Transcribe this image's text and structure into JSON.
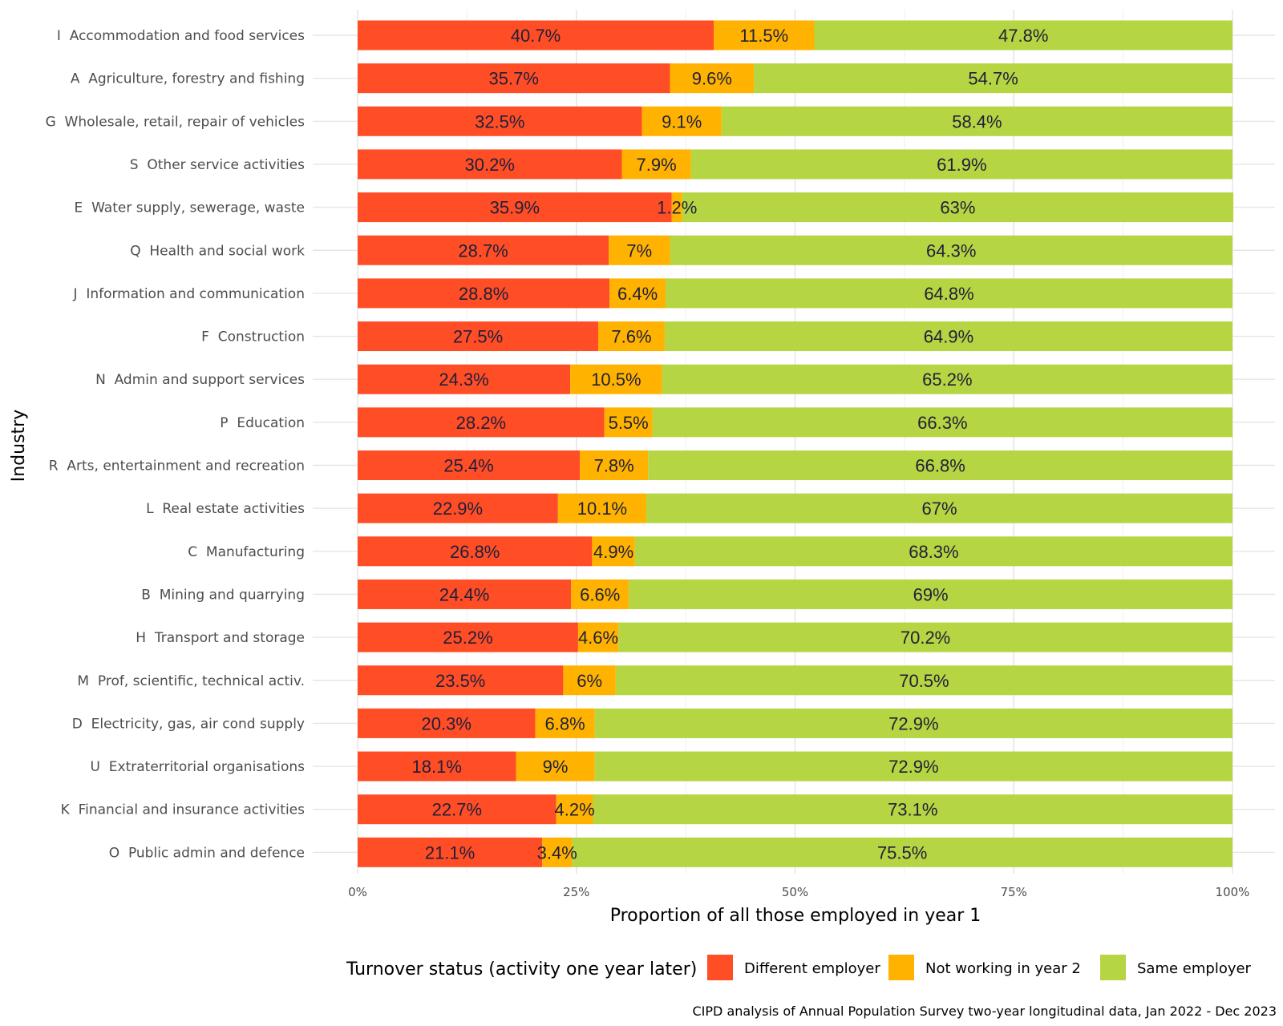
{
  "chart_data": {
    "type": "bar",
    "orientation": "horizontal",
    "stacked": true,
    "xlabel": "Proportion of all those employed in year 1",
    "ylabel": "Industry",
    "xlim": [
      0,
      100
    ],
    "xticks": [
      {
        "value": 0,
        "label": "0%"
      },
      {
        "value": 25,
        "label": "25%"
      },
      {
        "value": 50,
        "label": "50%"
      },
      {
        "value": 75,
        "label": "75%"
      },
      {
        "value": 100,
        "label": "100%"
      }
    ],
    "grid": true,
    "legend": {
      "title": "Turnover status (activity one year later)",
      "position": "bottom"
    },
    "caption": "CIPD analysis of Annual Population Survey two-year longitudinal data, Jan 2022 - Dec 2023",
    "categories": [
      "I  Accommodation and food services",
      "A  Agriculture, forestry and fishing",
      "G  Wholesale, retail, repair of vehicles",
      "S  Other service activities",
      "E  Water supply, sewerage, waste",
      "Q  Health and social work",
      "J  Information and communication",
      "F  Construction",
      "N  Admin and support services",
      "P  Education",
      "R  Arts, entertainment and recreation",
      "L  Real estate activities",
      "C  Manufacturing",
      "B  Mining and quarrying",
      "H  Transport and storage",
      "M  Prof, scientific, technical activ.",
      "D  Electricity, gas, air cond supply",
      "U  Extraterritorial organisations",
      "K  Financial and insurance activities",
      "O  Public admin and defence"
    ],
    "series": [
      {
        "name": "Different employer",
        "color": "#FF4D26",
        "values": [
          40.7,
          35.7,
          32.5,
          30.2,
          35.9,
          28.7,
          28.8,
          27.5,
          24.3,
          28.2,
          25.4,
          22.9,
          26.8,
          24.4,
          25.2,
          23.5,
          20.3,
          18.1,
          22.7,
          21.1
        ],
        "labels": [
          "40.7%",
          "35.7%",
          "32.5%",
          "30.2%",
          "35.9%",
          "28.7%",
          "28.8%",
          "27.5%",
          "24.3%",
          "28.2%",
          "25.4%",
          "22.9%",
          "26.8%",
          "24.4%",
          "25.2%",
          "23.5%",
          "20.3%",
          "18.1%",
          "22.7%",
          "21.1%"
        ]
      },
      {
        "name": "Not working in year 2",
        "color": "#FFB300",
        "values": [
          11.5,
          9.6,
          9.1,
          7.9,
          1.2,
          7,
          6.4,
          7.6,
          10.5,
          5.5,
          7.8,
          10.1,
          4.9,
          6.6,
          4.6,
          6,
          6.8,
          9,
          4.2,
          3.4
        ],
        "labels": [
          "11.5%",
          "9.6%",
          "9.1%",
          "7.9%",
          "1.2%",
          "7%",
          "6.4%",
          "7.6%",
          "10.5%",
          "5.5%",
          "7.8%",
          "10.1%",
          "4.9%",
          "6.6%",
          "4.6%",
          "6%",
          "6.8%",
          "9%",
          "4.2%",
          "3.4%"
        ]
      },
      {
        "name": "Same employer",
        "color": "#B5D542",
        "values": [
          47.8,
          54.7,
          58.4,
          61.9,
          63,
          64.3,
          64.8,
          64.9,
          65.2,
          66.3,
          66.8,
          67,
          68.3,
          69,
          70.2,
          70.5,
          72.9,
          72.9,
          73.1,
          75.5
        ],
        "labels": [
          "47.8%",
          "54.7%",
          "58.4%",
          "61.9%",
          "63%",
          "64.3%",
          "64.8%",
          "64.9%",
          "65.2%",
          "66.3%",
          "66.8%",
          "67%",
          "68.3%",
          "69%",
          "70.2%",
          "70.5%",
          "72.9%",
          "72.9%",
          "73.1%",
          "75.5%"
        ]
      }
    ]
  }
}
